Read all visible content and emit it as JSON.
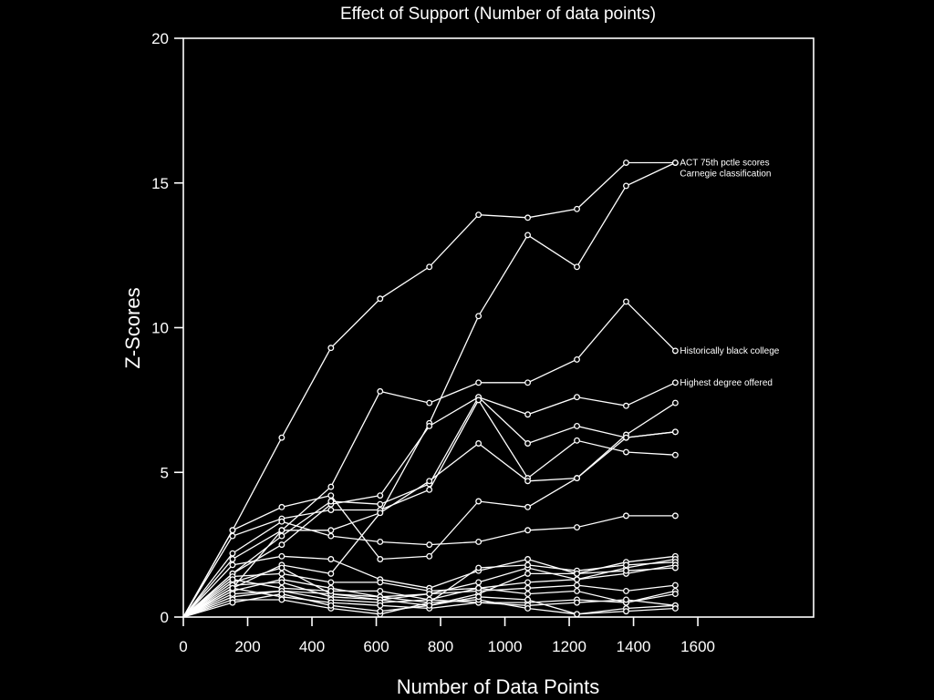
{
  "chart_data": {
    "type": "line",
    "title": "Effect of Support (Number of data points)",
    "xlabel": "Number of Data Points",
    "ylabel": "Z-Scores",
    "xlim": [
      0,
      1960
    ],
    "ylim": [
      0,
      20
    ],
    "xticks": [
      0,
      200,
      400,
      600,
      800,
      1000,
      1200,
      1400,
      1600
    ],
    "yticks": [
      0,
      5,
      10,
      15,
      20
    ],
    "grid": false,
    "legend": "none",
    "x": [
      0,
      153,
      306,
      459,
      612,
      765,
      918,
      1071,
      1224,
      1377,
      1530
    ],
    "series": [
      {
        "name": "ACT 75th pctle scores",
        "values": [
          0,
          3.0,
          6.2,
          9.3,
          11.0,
          12.1,
          13.9,
          13.8,
          14.1,
          15.7,
          15.7
        ]
      },
      {
        "name": "Carnegie classification",
        "values": [
          0,
          1.0,
          1.8,
          1.5,
          3.6,
          6.7,
          10.4,
          13.2,
          12.1,
          14.9,
          15.7
        ]
      },
      {
        "name": "Historically black college",
        "values": [
          0,
          2.0,
          3.0,
          4.5,
          7.8,
          7.4,
          8.1,
          8.1,
          8.9,
          10.9,
          9.2
        ]
      },
      {
        "name": "Highest degree offered",
        "values": [
          0,
          1.5,
          2.5,
          3.9,
          4.2,
          6.6,
          7.6,
          7.0,
          7.6,
          7.3,
          8.1
        ]
      },
      {
        "values": [
          0,
          1.5,
          2.8,
          4.0,
          3.9,
          4.6,
          7.6,
          6.0,
          6.6,
          6.2,
          6.4
        ]
      },
      {
        "values": [
          0,
          2.8,
          3.4,
          3.7,
          3.7,
          4.4,
          7.5,
          4.8,
          6.1,
          5.7,
          5.6
        ]
      },
      {
        "values": [
          0,
          1.0,
          3.0,
          3.0,
          3.6,
          4.7,
          6.0,
          4.7,
          4.8,
          6.3,
          7.4
        ]
      },
      {
        "values": [
          0,
          3.0,
          3.8,
          4.2,
          2.0,
          2.1,
          4.0,
          3.8,
          4.8,
          6.2,
          6.4
        ]
      },
      {
        "values": [
          0,
          2.2,
          3.3,
          2.8,
          2.6,
          2.5,
          2.6,
          3.0,
          3.1,
          3.5,
          3.5
        ]
      },
      {
        "values": [
          0,
          1.8,
          2.1,
          2.0,
          1.3,
          1.0,
          1.6,
          2.0,
          1.5,
          1.9,
          2.1
        ]
      },
      {
        "values": [
          0,
          1.2,
          1.7,
          0.8,
          0.7,
          0.8,
          1.2,
          1.7,
          1.3,
          1.7,
          2.0
        ]
      },
      {
        "values": [
          0,
          0.9,
          1.3,
          1.0,
          0.7,
          0.5,
          1.7,
          1.8,
          1.6,
          1.8,
          1.9
        ]
      },
      {
        "values": [
          0,
          1.4,
          1.5,
          1.2,
          1.2,
          0.9,
          1.0,
          1.2,
          1.3,
          1.5,
          1.8
        ]
      },
      {
        "values": [
          0,
          1.1,
          1.2,
          0.7,
          0.6,
          0.4,
          0.8,
          1.5,
          1.5,
          1.6,
          1.7
        ]
      },
      {
        "values": [
          0,
          0.7,
          0.9,
          0.8,
          0.6,
          0.8,
          0.9,
          1.0,
          1.1,
          0.9,
          1.1
        ]
      },
      {
        "values": [
          0,
          1.3,
          1.0,
          0.9,
          0.9,
          0.6,
          1.0,
          0.8,
          0.9,
          0.5,
          0.9
        ]
      },
      {
        "values": [
          0,
          0.8,
          0.9,
          0.6,
          0.5,
          0.6,
          0.5,
          0.5,
          0.6,
          0.5,
          0.8
        ]
      },
      {
        "values": [
          0,
          1.0,
          0.7,
          0.5,
          0.4,
          0.3,
          0.5,
          0.4,
          0.5,
          0.6,
          0.4
        ]
      },
      {
        "values": [
          0,
          0.6,
          0.6,
          0.3,
          0.1,
          0.5,
          0.6,
          0.3,
          0.1,
          0.3,
          0.4
        ]
      },
      {
        "values": [
          0,
          0.5,
          0.8,
          0.4,
          0.2,
          0.4,
          0.7,
          0.6,
          0.1,
          0.2,
          0.3
        ]
      }
    ]
  }
}
